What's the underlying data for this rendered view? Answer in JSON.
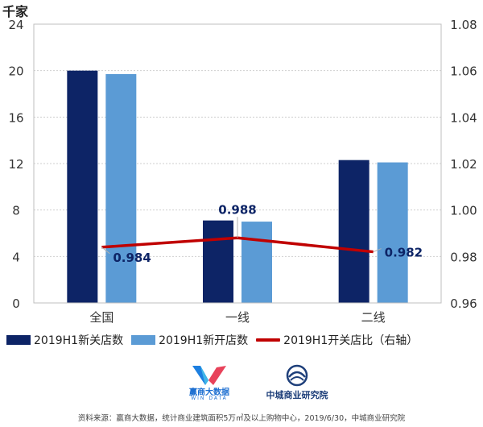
{
  "chart_data": {
    "type": "bar",
    "y_unit_label": "千家",
    "categories": [
      "全国",
      "一线",
      "二线"
    ],
    "series": [
      {
        "name": "2019H1新关店数",
        "type": "bar",
        "axis": "left",
        "color": "#0d2466",
        "values": [
          20.0,
          7.1,
          12.3
        ]
      },
      {
        "name": "2019H1新开店数",
        "type": "bar",
        "axis": "left",
        "color": "#5b9bd5",
        "values": [
          19.7,
          7.0,
          12.1
        ]
      },
      {
        "name": "2019H1开关店比（右轴）",
        "type": "line",
        "axis": "right",
        "color": "#c00000",
        "values": [
          0.984,
          0.988,
          0.982
        ]
      }
    ],
    "data_labels": [
      "0.984",
      "0.988",
      "0.982"
    ],
    "y_left": {
      "min": 0,
      "max": 24,
      "ticks": [
        "0",
        "4",
        "8",
        "12",
        "16",
        "20",
        "24"
      ]
    },
    "y_right": {
      "min": 0.96,
      "max": 1.08,
      "ticks": [
        "0.96",
        "0.98",
        "1.00",
        "1.02",
        "1.04",
        "1.06",
        "1.08"
      ]
    },
    "grid": true,
    "legend_position": "bottom"
  },
  "logos": {
    "left_name": "赢商大数据",
    "left_sub": "WIN DATA",
    "right_name": "中城商业研究院"
  },
  "source_text": "资料来源：赢商大数据，统计商业建筑面积5万㎡及以上购物中心，2019/6/30，中城商业研究院"
}
